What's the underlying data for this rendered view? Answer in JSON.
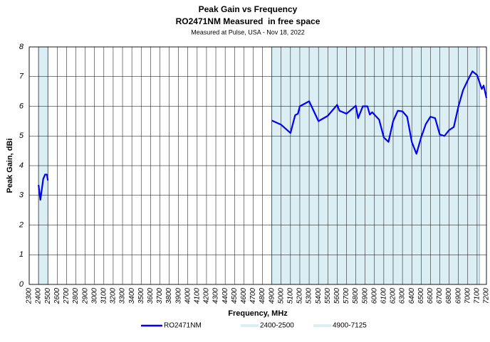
{
  "chart_data": {
    "type": "line",
    "title": "Peak Gain vs Frequency",
    "subtitle": "RO2471NM Measured  in free space",
    "note": "Measured at Pulse, USA - Nov 18, 2022",
    "x_label": "Frequency, MHz",
    "y_label": "Peak Gain, dBi",
    "xlim": [
      2300,
      7200
    ],
    "ylim": [
      0,
      8
    ],
    "xticks": [
      2300,
      2400,
      2500,
      2600,
      2700,
      2800,
      2900,
      3000,
      3100,
      3200,
      3300,
      3400,
      3500,
      3600,
      3700,
      3800,
      3900,
      4000,
      4100,
      4200,
      4300,
      4400,
      4500,
      4600,
      4700,
      4800,
      4900,
      5000,
      5100,
      5200,
      5300,
      5400,
      5500,
      5600,
      5700,
      5800,
      5900,
      6000,
      6100,
      6200,
      6300,
      6400,
      6500,
      6600,
      6700,
      6800,
      6900,
      7000,
      7100,
      7200
    ],
    "yticks": [
      0,
      1,
      2,
      3,
      4,
      5,
      6,
      7,
      8
    ],
    "grid": true,
    "bands": [
      {
        "name": "2400-2500",
        "from": 2400,
        "to": 2500,
        "color": "#dbeef4"
      },
      {
        "name": "4900-7125",
        "from": 4900,
        "to": 7125,
        "color": "#dbeef4"
      }
    ],
    "series": [
      {
        "name": "RO2471NM",
        "color": "#0000ff",
        "x": [
          2400,
          2420,
          2450,
          2470,
          2490,
          2500,
          3700,
          4900,
          5000,
          5100,
          5150,
          5180,
          5200,
          5300,
          5400,
          5500,
          5600,
          5625,
          5700,
          5800,
          5825,
          5875,
          5925,
          5950,
          5975,
          6050,
          6100,
          6150,
          6200,
          6250,
          6300,
          6350,
          6400,
          6450,
          6500,
          6550,
          6600,
          6650,
          6700,
          6750,
          6800,
          6850,
          6900,
          6950,
          7000,
          7050,
          7100,
          7150,
          7170,
          7200
        ],
        "values": [
          3.35,
          2.85,
          3.55,
          3.7,
          3.7,
          3.5,
          null,
          5.52,
          5.38,
          5.1,
          5.7,
          5.75,
          6.0,
          6.17,
          5.5,
          5.68,
          6.05,
          5.85,
          5.75,
          6.02,
          5.6,
          6.0,
          6.0,
          5.72,
          5.8,
          5.55,
          4.95,
          4.8,
          5.5,
          5.85,
          5.83,
          5.65,
          4.8,
          4.4,
          4.95,
          5.4,
          5.65,
          5.6,
          5.05,
          5.0,
          5.2,
          5.3,
          6.0,
          6.55,
          6.88,
          7.18,
          7.05,
          6.58,
          6.7,
          6.28
        ]
      }
    ]
  }
}
